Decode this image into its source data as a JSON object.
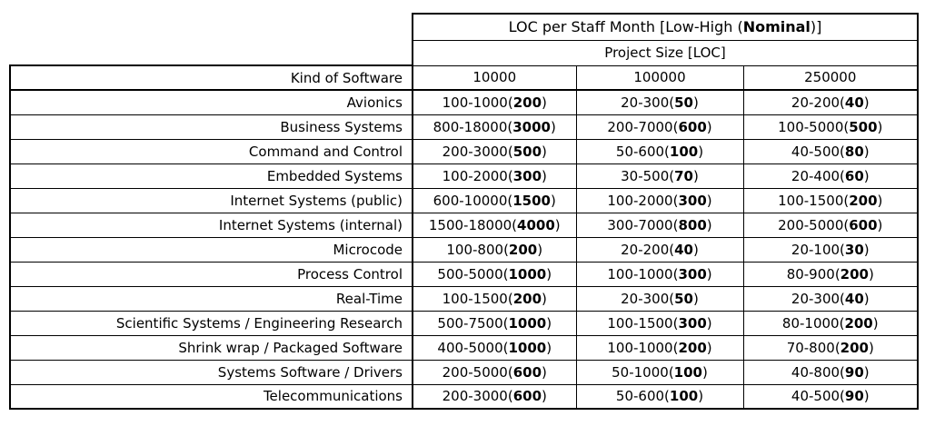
{
  "table": {
    "title_prefix": "LOC per Staff Month [Low-High (",
    "title_bold": "Nominal",
    "title_suffix": ")]"
  },
  "chart_data": {
    "type": "table",
    "title": "LOC per Staff Month [Low-High (Nominal)]",
    "subtitle": "Project Size [LOC]",
    "columns": [
      "Kind of Software",
      "10000",
      "100000",
      "250000"
    ],
    "rows": [
      {
        "kind": "Avionics",
        "cells": [
          {
            "range": "100-1000",
            "nominal": "200"
          },
          {
            "range": "20-300",
            "nominal": "50"
          },
          {
            "range": "20-200",
            "nominal": "40"
          }
        ]
      },
      {
        "kind": "Business Systems",
        "cells": [
          {
            "range": "800-18000",
            "nominal": "3000"
          },
          {
            "range": "200-7000",
            "nominal": "600"
          },
          {
            "range": "100-5000",
            "nominal": "500"
          }
        ]
      },
      {
        "kind": "Command and Control",
        "cells": [
          {
            "range": "200-3000",
            "nominal": "500"
          },
          {
            "range": "50-600",
            "nominal": "100"
          },
          {
            "range": "40-500",
            "nominal": "80"
          }
        ]
      },
      {
        "kind": "Embedded Systems",
        "cells": [
          {
            "range": "100-2000",
            "nominal": "300"
          },
          {
            "range": "30-500",
            "nominal": "70"
          },
          {
            "range": "20-400",
            "nominal": "60"
          }
        ]
      },
      {
        "kind": "Internet Systems (public)",
        "cells": [
          {
            "range": "600-10000",
            "nominal": "1500"
          },
          {
            "range": "100-2000",
            "nominal": "300"
          },
          {
            "range": "100-1500",
            "nominal": "200"
          }
        ]
      },
      {
        "kind": "Internet Systems (internal)",
        "cells": [
          {
            "range": "1500-18000",
            "nominal": "4000"
          },
          {
            "range": "300-7000",
            "nominal": "800"
          },
          {
            "range": "200-5000",
            "nominal": "600"
          }
        ]
      },
      {
        "kind": "Microcode",
        "cells": [
          {
            "range": "100-800",
            "nominal": "200"
          },
          {
            "range": "20-200",
            "nominal": "40"
          },
          {
            "range": "20-100",
            "nominal": "30"
          }
        ]
      },
      {
        "kind": "Process Control",
        "cells": [
          {
            "range": "500-5000",
            "nominal": "1000"
          },
          {
            "range": "100-1000",
            "nominal": "300"
          },
          {
            "range": "80-900",
            "nominal": "200"
          }
        ]
      },
      {
        "kind": "Real-Time",
        "cells": [
          {
            "range": "100-1500",
            "nominal": "200"
          },
          {
            "range": "20-300",
            "nominal": "50"
          },
          {
            "range": "20-300",
            "nominal": "40"
          }
        ]
      },
      {
        "kind": "Scientific Systems / Engineering Research",
        "cells": [
          {
            "range": "500-7500",
            "nominal": "1000"
          },
          {
            "range": "100-1500",
            "nominal": "300"
          },
          {
            "range": "80-1000",
            "nominal": "200"
          }
        ]
      },
      {
        "kind": "Shrink wrap / Packaged Software",
        "cells": [
          {
            "range": "400-5000",
            "nominal": "1000"
          },
          {
            "range": "100-1000",
            "nominal": "200"
          },
          {
            "range": "70-800",
            "nominal": "200"
          }
        ]
      },
      {
        "kind": "Systems Software / Drivers",
        "cells": [
          {
            "range": "200-5000",
            "nominal": "600"
          },
          {
            "range": "50-1000",
            "nominal": "100"
          },
          {
            "range": "40-800",
            "nominal": "90"
          }
        ]
      },
      {
        "kind": "Telecommunications",
        "cells": [
          {
            "range": "200-3000",
            "nominal": "600"
          },
          {
            "range": "50-600",
            "nominal": "100"
          },
          {
            "range": "40-500",
            "nominal": "90"
          }
        ]
      }
    ]
  }
}
